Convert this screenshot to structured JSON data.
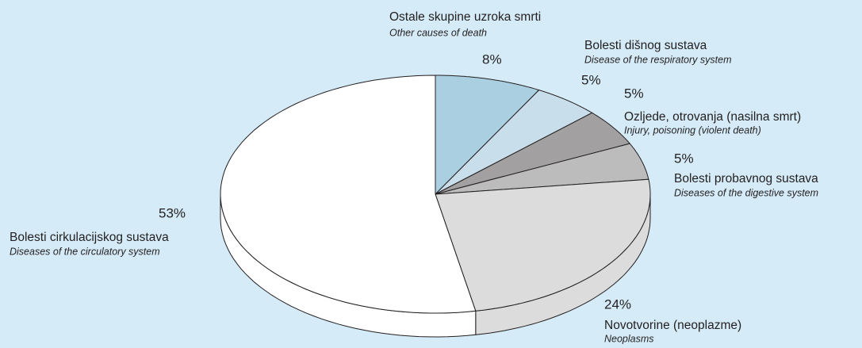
{
  "chart_data": {
    "type": "pie",
    "categories": [
      "Ostale skupine uzroka smrti",
      "Bolesti dišnog sustava",
      "Ozljede, otrovanja (nasilna smrt)",
      "Bolesti probavnog sustava",
      "Novotvorine (neoplazme)",
      "Bolesti cirkulacijskog sustava"
    ],
    "categories_en": [
      "Other causes of death",
      "Disease of the respiratory system",
      "Injury, poisoning (violent death)",
      "Diseases of the digestive system",
      "Neoplasms",
      "Diseases of the circulatory system"
    ],
    "values": [
      8,
      5,
      5,
      5,
      24,
      53
    ],
    "value_labels": [
      "8%",
      "5%",
      "5%",
      "5%",
      "24%",
      "53%"
    ],
    "colors": [
      "#a9cfe1",
      "#c8deeb",
      "#a2a0a0",
      "#bcbcbc",
      "#dcdcdc",
      "#ffffff"
    ]
  }
}
